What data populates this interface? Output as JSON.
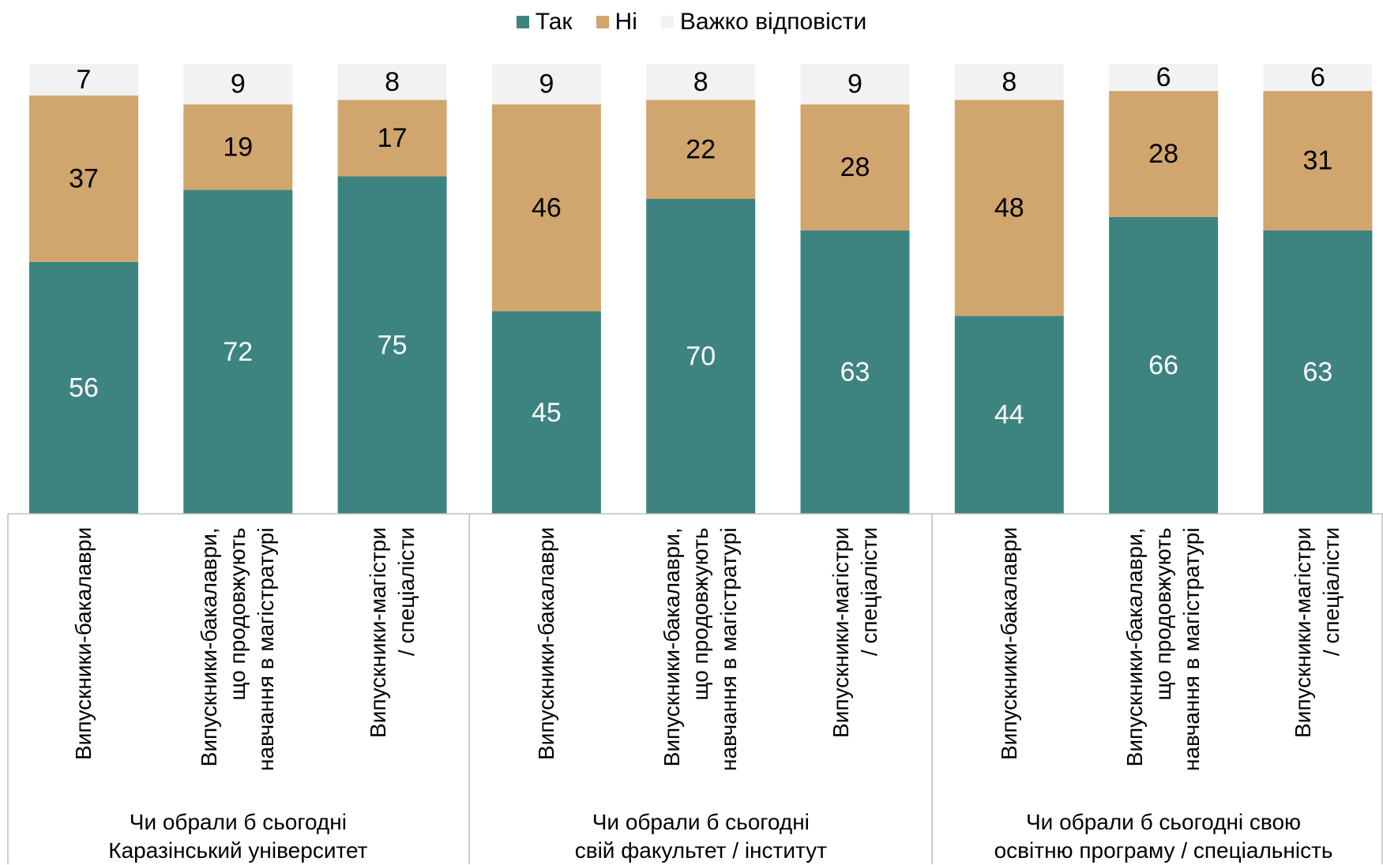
{
  "chart_data": {
    "type": "bar",
    "stacked": true,
    "legend_position": "top-center",
    "grid": false,
    "ylim": [
      0,
      100
    ],
    "series": [
      {
        "name": "Так",
        "color": "#3d8481",
        "label_color": "#ffffff",
        "values": [
          56,
          72,
          75,
          45,
          70,
          63,
          44,
          66,
          63
        ]
      },
      {
        "name": "Ні",
        "color": "#d0a56e",
        "label_color": "#000000",
        "values": [
          37,
          19,
          17,
          46,
          22,
          28,
          48,
          28,
          31
        ]
      },
      {
        "name": "Важко відповісти",
        "color": "#f2f2f2",
        "label_color": "#000000",
        "values": [
          7,
          9,
          8,
          9,
          8,
          9,
          8,
          6,
          6
        ]
      }
    ],
    "groups": [
      {
        "label_lines": [
          "Чи обрали б сьогодні",
          "Каразінський університет"
        ],
        "categories": [
          {
            "lines": [
              "Випускники-бакалаври"
            ]
          },
          {
            "lines": [
              "Випускники-бакалаври,",
              "що продовжують",
              "навчання в магістратурі"
            ]
          },
          {
            "lines": [
              "Випускники-магістри",
              "/ спеціалісти"
            ]
          }
        ]
      },
      {
        "label_lines": [
          "Чи обрали б сьогодні",
          "свій факультет / інститут"
        ],
        "categories": [
          {
            "lines": [
              "Випускники-бакалаври"
            ]
          },
          {
            "lines": [
              "Випускники-бакалаври,",
              "що продовжують",
              "навчання в магістратурі"
            ]
          },
          {
            "lines": [
              "Випускники-магістри",
              "/ спеціалісти"
            ]
          }
        ]
      },
      {
        "label_lines": [
          "Чи обрали б сьогодні свою",
          "освітню програму / спеціальність"
        ],
        "categories": [
          {
            "lines": [
              "Випускники-бакалаври"
            ]
          },
          {
            "lines": [
              "Випускники-бакалаври,",
              "що продовжують",
              "навчання в магістратурі"
            ]
          },
          {
            "lines": [
              "Випускники-магістри",
              "/ спеціалісти"
            ]
          }
        ]
      }
    ]
  }
}
